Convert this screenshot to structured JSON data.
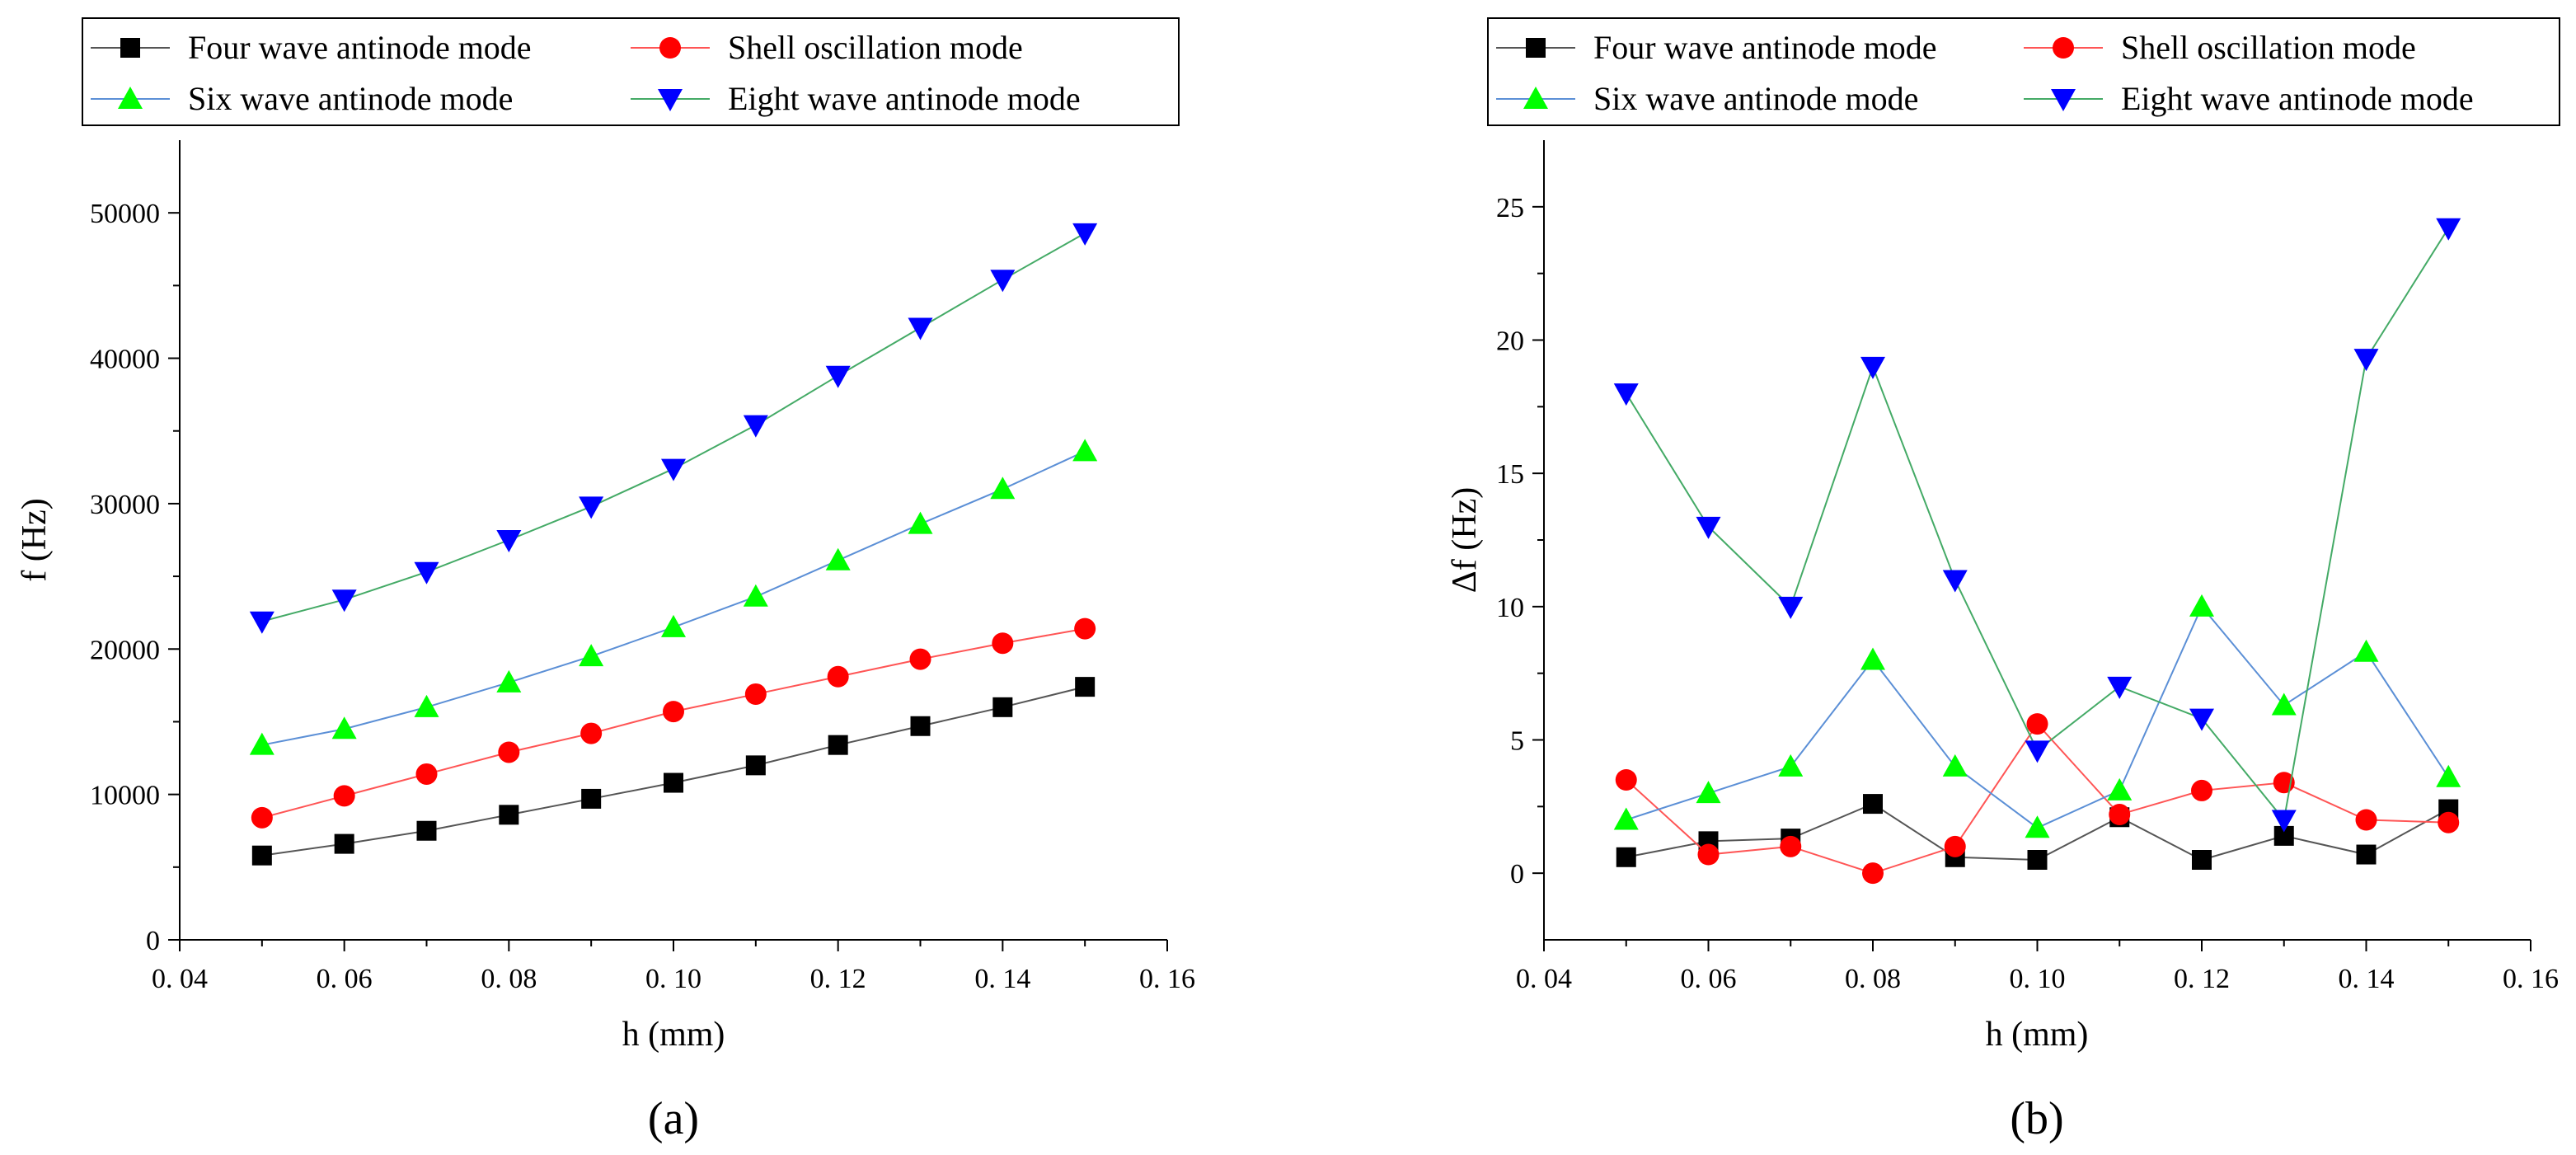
{
  "chart_data": [
    {
      "type": "line",
      "panel": "a",
      "caption": "(a)",
      "xlabel": "h (mm)",
      "ylabel": "f (Hz)",
      "xlim": [
        0.04,
        0.16
      ],
      "ylim": [
        0,
        55000
      ],
      "xticks": [
        0.04,
        0.06,
        0.08,
        0.1,
        0.12,
        0.14,
        0.16
      ],
      "xtick_labels": [
        "0. 04",
        "0. 06",
        "0. 08",
        "0. 10",
        "0. 12",
        "0. 14",
        "0. 16"
      ],
      "yticks": [
        0,
        10000,
        20000,
        30000,
        40000,
        50000
      ],
      "ytick_labels": [
        "0",
        "10000",
        "20000",
        "30000",
        "40000",
        "50000"
      ],
      "x": [
        0.05,
        0.06,
        0.07,
        0.08,
        0.09,
        0.1,
        0.11,
        0.12,
        0.13,
        0.14,
        0.15
      ],
      "series": [
        {
          "name": "Four wave antinode mode",
          "color": "#000000",
          "line": "#555555",
          "marker": "square",
          "values": [
            5800,
            6600,
            7500,
            8600,
            9700,
            10800,
            12000,
            13400,
            14700,
            16000,
            17400
          ]
        },
        {
          "name": "Shell oscillation mode",
          "color": "#ff0000",
          "line": "#ff5555",
          "marker": "circle",
          "values": [
            8400,
            9900,
            11400,
            12900,
            14200,
            15700,
            16900,
            18100,
            19300,
            20400,
            21400
          ]
        },
        {
          "name": "Six wave antinode mode",
          "color": "#00ff00",
          "line": "#5b8fd6",
          "marker": "triangle-up",
          "values": [
            13400,
            14500,
            16000,
            17700,
            19500,
            21500,
            23600,
            26100,
            28600,
            31000,
            33600
          ]
        },
        {
          "name": "Eight wave antinode mode",
          "color": "#0000ff",
          "line": "#44aa66",
          "marker": "triangle-down",
          "values": [
            21900,
            23400,
            25300,
            27500,
            29800,
            32400,
            35400,
            38800,
            42100,
            45400,
            48600
          ]
        }
      ]
    },
    {
      "type": "line",
      "panel": "b",
      "caption": "(b)",
      "xlabel": "h (mm)",
      "ylabel": "Δf (Hz)",
      "xlim": [
        0.04,
        0.16
      ],
      "ylim": [
        -2.5,
        27.5
      ],
      "xticks": [
        0.04,
        0.06,
        0.08,
        0.1,
        0.12,
        0.14,
        0.16
      ],
      "xtick_labels": [
        "0. 04",
        "0. 06",
        "0. 08",
        "0. 10",
        "0. 12",
        "0. 14",
        "0. 16"
      ],
      "yticks": [
        0,
        5,
        10,
        15,
        20,
        25
      ],
      "ytick_labels": [
        "0",
        "5",
        "10",
        "15",
        "20",
        "25"
      ],
      "x": [
        0.05,
        0.06,
        0.07,
        0.08,
        0.09,
        0.1,
        0.11,
        0.12,
        0.13,
        0.14,
        0.15
      ],
      "series": [
        {
          "name": "Four wave antinode mode",
          "color": "#000000",
          "line": "#555555",
          "marker": "square",
          "values": [
            0.6,
            1.2,
            1.3,
            2.6,
            0.6,
            0.5,
            2.1,
            0.5,
            1.4,
            0.7,
            2.4
          ]
        },
        {
          "name": "Shell oscillation mode",
          "color": "#ff0000",
          "line": "#ff5555",
          "marker": "circle",
          "values": [
            3.5,
            0.7,
            1.0,
            0.0,
            1.0,
            5.6,
            2.2,
            3.1,
            3.4,
            2.0,
            1.9
          ]
        },
        {
          "name": "Six wave antinode mode",
          "color": "#00ff00",
          "line": "#5b8fd6",
          "marker": "triangle-up",
          "values": [
            2.0,
            3.0,
            4.0,
            8.0,
            4.0,
            1.7,
            3.1,
            10.0,
            6.3,
            8.3,
            3.6
          ]
        },
        {
          "name": "Eight wave antinode mode",
          "color": "#0000ff",
          "line": "#44aa66",
          "marker": "triangle-down",
          "values": [
            18.0,
            13.0,
            10.0,
            19.0,
            11.0,
            4.6,
            7.0,
            5.8,
            2.0,
            19.3,
            24.2
          ]
        }
      ]
    }
  ]
}
